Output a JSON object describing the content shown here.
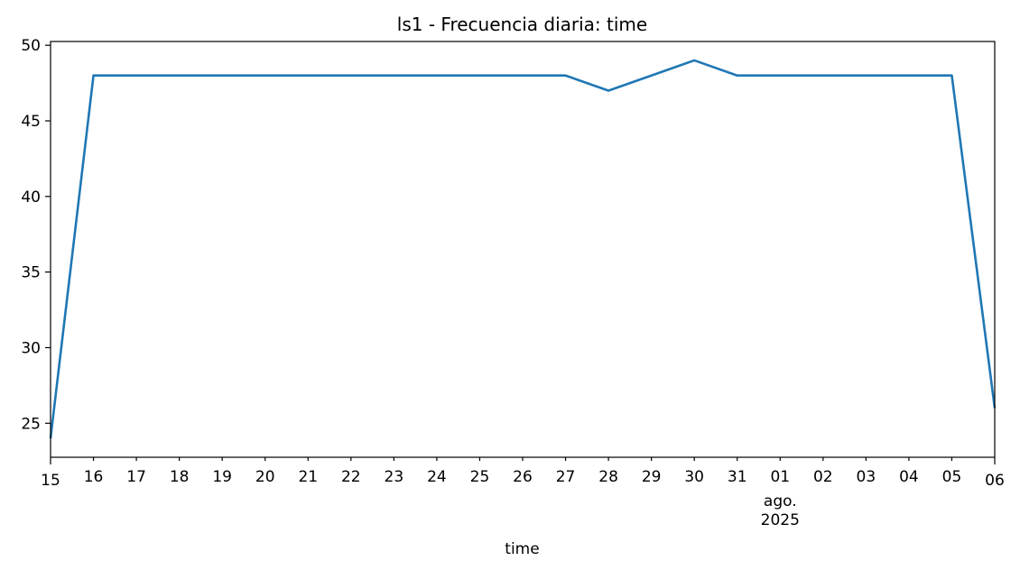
{
  "chart_data": {
    "type": "line",
    "title": "ls1 - Frecuencia diaria: time",
    "xlabel": "time",
    "ylabel": "",
    "x": [
      "2025-07-15",
      "2025-07-16",
      "2025-07-17",
      "2025-07-18",
      "2025-07-19",
      "2025-07-20",
      "2025-07-21",
      "2025-07-22",
      "2025-07-23",
      "2025-07-24",
      "2025-07-25",
      "2025-07-26",
      "2025-07-27",
      "2025-07-28",
      "2025-07-29",
      "2025-07-30",
      "2025-07-31",
      "2025-08-01",
      "2025-08-02",
      "2025-08-03",
      "2025-08-04",
      "2025-08-05",
      "2025-08-06"
    ],
    "x_tick_labels": [
      "15",
      "16",
      "17",
      "18",
      "19",
      "20",
      "21",
      "22",
      "23",
      "24",
      "25",
      "26",
      "27",
      "28",
      "29",
      "30",
      "31",
      "01",
      "02",
      "03",
      "04",
      "05",
      "06"
    ],
    "x_tick_sublabels": {
      "17": [
        "ago.",
        "2025"
      ]
    },
    "series": [
      {
        "color": "#1f77b4",
        "values": [
          24,
          48,
          48,
          48,
          48,
          48,
          48,
          48,
          48,
          48,
          48,
          48,
          48,
          47,
          48,
          49,
          48,
          48,
          48,
          48,
          48,
          48,
          26
        ]
      }
    ],
    "ylim": [
      22.75,
      50.25
    ],
    "y_ticks": [
      25,
      30,
      35,
      40,
      45,
      50
    ],
    "grid": false,
    "legend": "none"
  }
}
